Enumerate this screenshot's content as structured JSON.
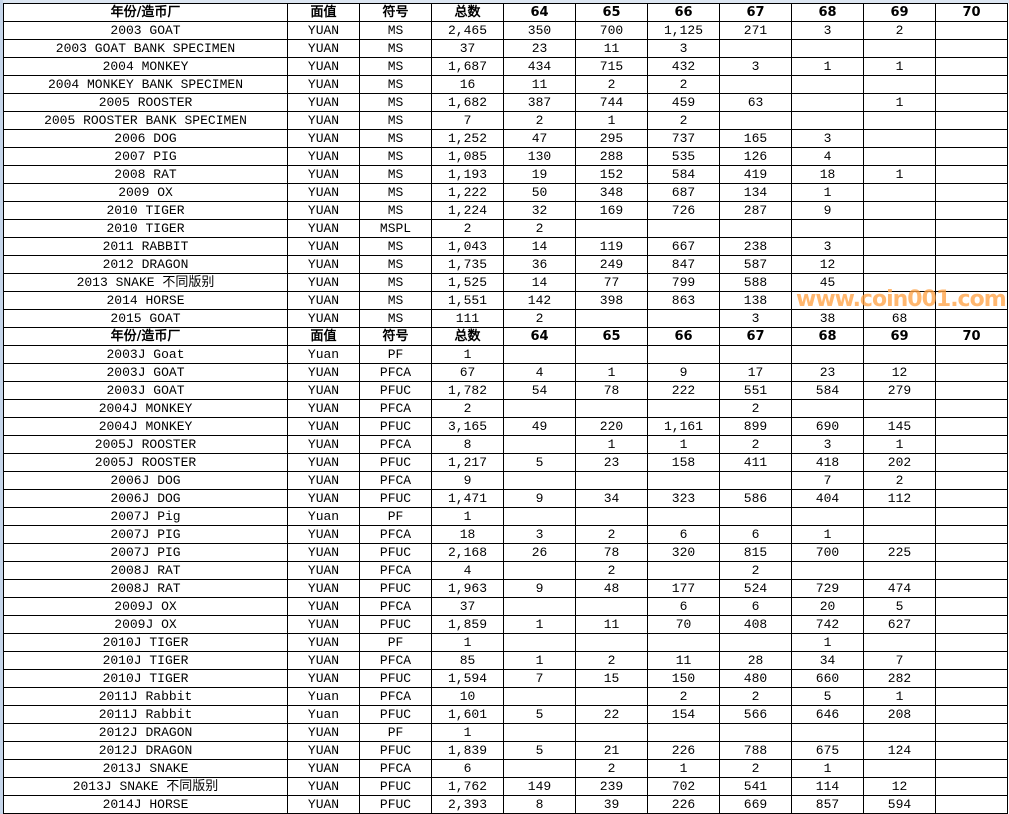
{
  "sheet": {
    "headers": [
      "年份/造币厂",
      "面值",
      "符号",
      "总数",
      "64",
      "65",
      "66",
      "67",
      "68",
      "69",
      "70"
    ],
    "section1": [
      [
        "2003 GOAT",
        "YUAN",
        "MS",
        "2,465",
        "350",
        "700",
        "1,125",
        "271",
        "3",
        "2",
        ""
      ],
      [
        "2003 GOAT BANK SPECIMEN",
        "YUAN",
        "MS",
        "37",
        "23",
        "11",
        "3",
        "",
        "",
        "",
        ""
      ],
      [
        "2004 MONKEY",
        "YUAN",
        "MS",
        "1,687",
        "434",
        "715",
        "432",
        "3",
        "1",
        "1",
        ""
      ],
      [
        "2004 MONKEY BANK SPECIMEN",
        "YUAN",
        "MS",
        "16",
        "11",
        "2",
        "2",
        "",
        "",
        "",
        ""
      ],
      [
        "2005 ROOSTER",
        "YUAN",
        "MS",
        "1,682",
        "387",
        "744",
        "459",
        "63",
        "",
        "1",
        ""
      ],
      [
        "2005 ROOSTER BANK SPECIMEN",
        "YUAN",
        "MS",
        "7",
        "2",
        "1",
        "2",
        "",
        "",
        "",
        ""
      ],
      [
        "2006 DOG",
        "YUAN",
        "MS",
        "1,252",
        "47",
        "295",
        "737",
        "165",
        "3",
        "",
        ""
      ],
      [
        "2007 PIG",
        "YUAN",
        "MS",
        "1,085",
        "130",
        "288",
        "535",
        "126",
        "4",
        "",
        ""
      ],
      [
        "2008 RAT",
        "YUAN",
        "MS",
        "1,193",
        "19",
        "152",
        "584",
        "419",
        "18",
        "1",
        ""
      ],
      [
        "2009 OX",
        "YUAN",
        "MS",
        "1,222",
        "50",
        "348",
        "687",
        "134",
        "1",
        "",
        ""
      ],
      [
        "2010 TIGER",
        "YUAN",
        "MS",
        "1,224",
        "32",
        "169",
        "726",
        "287",
        "9",
        "",
        ""
      ],
      [
        "2010 TIGER",
        "YUAN",
        "MSPL",
        "2",
        "2",
        "",
        "",
        "",
        "",
        "",
        ""
      ],
      [
        "2011 RABBIT",
        "YUAN",
        "MS",
        "1,043",
        "14",
        "119",
        "667",
        "238",
        "3",
        "",
        ""
      ],
      [
        "2012 DRAGON",
        "YUAN",
        "MS",
        "1,735",
        "36",
        "249",
        "847",
        "587",
        "12",
        "",
        ""
      ],
      [
        "2013 SNAKE 不同版别",
        "YUAN",
        "MS",
        "1,525",
        "14",
        "77",
        "799",
        "588",
        "45",
        "",
        ""
      ],
      [
        "2014 HORSE",
        "YUAN",
        "MS",
        "1,551",
        "142",
        "398",
        "863",
        "138",
        "",
        "",
        ""
      ],
      [
        "2015 GOAT",
        "YUAN",
        "MS",
        "111",
        "2",
        "",
        "",
        "3",
        "38",
        "68",
        ""
      ]
    ],
    "section2": [
      [
        "2003J Goat",
        "Yuan",
        "PF",
        "1",
        "",
        "",
        "",
        "",
        "",
        "",
        ""
      ],
      [
        "2003J GOAT",
        "YUAN",
        "PFCA",
        "67",
        "4",
        "1",
        "9",
        "17",
        "23",
        "12",
        ""
      ],
      [
        "2003J GOAT",
        "YUAN",
        "PFUC",
        "1,782",
        "54",
        "78",
        "222",
        "551",
        "584",
        "279",
        ""
      ],
      [
        "2004J MONKEY",
        "YUAN",
        "PFCA",
        "2",
        "",
        "",
        "",
        "2",
        "",
        "",
        ""
      ],
      [
        "2004J MONKEY",
        "YUAN",
        "PFUC",
        "3,165",
        "49",
        "220",
        "1,161",
        "899",
        "690",
        "145",
        ""
      ],
      [
        "2005J ROOSTER",
        "YUAN",
        "PFCA",
        "8",
        "",
        "1",
        "1",
        "2",
        "3",
        "1",
        ""
      ],
      [
        "2005J ROOSTER",
        "YUAN",
        "PFUC",
        "1,217",
        "5",
        "23",
        "158",
        "411",
        "418",
        "202",
        ""
      ],
      [
        "2006J DOG",
        "YUAN",
        "PFCA",
        "9",
        "",
        "",
        "",
        "",
        "7",
        "2",
        ""
      ],
      [
        "2006J DOG",
        "YUAN",
        "PFUC",
        "1,471",
        "9",
        "34",
        "323",
        "586",
        "404",
        "112",
        ""
      ],
      [
        "2007J Pig",
        "Yuan",
        "PF",
        "1",
        "",
        "",
        "",
        "",
        "",
        "",
        ""
      ],
      [
        "2007J PIG",
        "YUAN",
        "PFCA",
        "18",
        "3",
        "2",
        "6",
        "6",
        "1",
        "",
        ""
      ],
      [
        "2007J PIG",
        "YUAN",
        "PFUC",
        "2,168",
        "26",
        "78",
        "320",
        "815",
        "700",
        "225",
        ""
      ],
      [
        "2008J RAT",
        "YUAN",
        "PFCA",
        "4",
        "",
        "2",
        "",
        "2",
        "",
        "",
        ""
      ],
      [
        "2008J RAT",
        "YUAN",
        "PFUC",
        "1,963",
        "9",
        "48",
        "177",
        "524",
        "729",
        "474",
        ""
      ],
      [
        "2009J OX",
        "YUAN",
        "PFCA",
        "37",
        "",
        "",
        "6",
        "6",
        "20",
        "5",
        ""
      ],
      [
        "2009J OX",
        "YUAN",
        "PFUC",
        "1,859",
        "1",
        "11",
        "70",
        "408",
        "742",
        "627",
        ""
      ],
      [
        "2010J TIGER",
        "YUAN",
        "PF",
        "1",
        "",
        "",
        "",
        "",
        "1",
        "",
        ""
      ],
      [
        "2010J TIGER",
        "YUAN",
        "PFCA",
        "85",
        "1",
        "2",
        "11",
        "28",
        "34",
        "7",
        ""
      ],
      [
        "2010J TIGER",
        "YUAN",
        "PFUC",
        "1,594",
        "7",
        "15",
        "150",
        "480",
        "660",
        "282",
        ""
      ],
      [
        "2011J Rabbit",
        "Yuan",
        "PFCA",
        "10",
        "",
        "",
        "2",
        "2",
        "5",
        "1",
        ""
      ],
      [
        "2011J Rabbit",
        "Yuan",
        "PFUC",
        "1,601",
        "5",
        "22",
        "154",
        "566",
        "646",
        "208",
        ""
      ],
      [
        "2012J DRAGON",
        "YUAN",
        "PF",
        "1",
        "",
        "",
        "",
        "",
        "",
        "",
        ""
      ],
      [
        "2012J DRAGON",
        "YUAN",
        "PFUC",
        "1,839",
        "5",
        "21",
        "226",
        "788",
        "675",
        "124",
        ""
      ],
      [
        "2013J SNAKE",
        "YUAN",
        "PFCA",
        "6",
        "",
        "2",
        "1",
        "2",
        "1",
        "",
        ""
      ],
      [
        "2013J SNAKE 不同版别",
        "YUAN",
        "PFUC",
        "1,762",
        "149",
        "239",
        "702",
        "541",
        "114",
        "12",
        ""
      ],
      [
        "2014J HORSE",
        "YUAN",
        "PFUC",
        "2,393",
        "8",
        "39",
        "226",
        "669",
        "857",
        "594",
        ""
      ]
    ]
  },
  "watermark": "www.coin001.com",
  "colors": {
    "watermark": "#ffa040",
    "grid": "#000000",
    "frame": "#dbe5f1"
  }
}
